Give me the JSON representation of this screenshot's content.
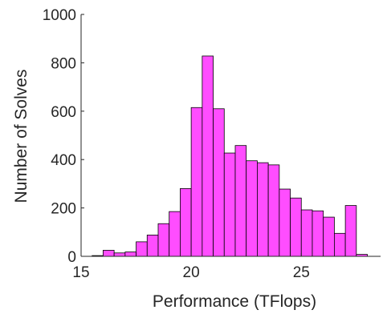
{
  "chart_data": {
    "type": "bar",
    "title": "",
    "xlabel": "Performance (TFlops)",
    "ylabel": "Number of Solves",
    "xlim": [
      15,
      28.6
    ],
    "ylim": [
      0,
      1000
    ],
    "xticks": [
      15,
      20,
      25
    ],
    "yticks": [
      0,
      200,
      400,
      600,
      800,
      1000
    ],
    "bin_width": 0.5,
    "bin_edges_start": 15.5,
    "values": [
      3,
      25,
      14,
      18,
      60,
      88,
      135,
      185,
      280,
      615,
      828,
      610,
      427,
      458,
      395,
      387,
      378,
      278,
      241,
      192,
      188,
      162,
      95,
      210,
      8
    ],
    "bar_color": "#ff4dff",
    "bar_edge_color": "#000000",
    "grid": false,
    "legend": "none"
  }
}
